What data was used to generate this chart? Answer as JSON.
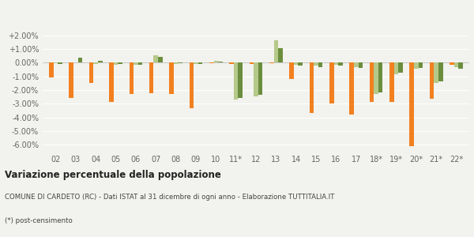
{
  "categories": [
    "02",
    "03",
    "04",
    "05",
    "06",
    "07",
    "08",
    "09",
    "10",
    "11*",
    "12",
    "13",
    "14",
    "15",
    "16",
    "17",
    "18*",
    "19*",
    "20*",
    "21*",
    "22*"
  ],
  "cardeto": [
    -1.05,
    -2.6,
    -1.5,
    -2.85,
    -2.3,
    -2.25,
    -2.3,
    -3.35,
    -0.05,
    -0.1,
    -0.1,
    -0.05,
    -1.2,
    -3.7,
    -3.0,
    -3.8,
    -2.85,
    -2.85,
    -6.1,
    -2.65,
    -0.15
  ],
  "provincia_rc": [
    -0.05,
    0.0,
    -0.1,
    -0.15,
    -0.15,
    0.55,
    -0.1,
    -0.1,
    0.15,
    -2.7,
    -2.45,
    1.65,
    -0.15,
    -0.2,
    -0.15,
    -0.3,
    -2.3,
    -0.85,
    -0.45,
    -1.5,
    -0.3
  ],
  "calabria": [
    -0.1,
    0.35,
    0.15,
    -0.1,
    -0.15,
    0.45,
    -0.05,
    -0.1,
    0.05,
    -2.6,
    -2.35,
    1.05,
    -0.2,
    -0.35,
    -0.2,
    -0.4,
    -2.2,
    -0.75,
    -0.4,
    -1.35,
    -0.45
  ],
  "cardeto_color": "#f28020",
  "provincia_color": "#b5c98a",
  "calabria_color": "#6b8e3e",
  "bg_color": "#f2f2ee",
  "grid_color": "#ffffff",
  "title": "Variazione percentuale della popolazione",
  "subtitle": "COMUNE DI CARDETO (RC) - Dati ISTAT al 31 dicembre di ogni anno - Elaborazione TUTTITALIA.IT",
  "footnote": "(*) post-censimento",
  "ylim": [
    -6.5,
    2.5
  ],
  "yticks": [
    -6.0,
    -5.0,
    -4.0,
    -3.0,
    -2.0,
    -1.0,
    0.0,
    1.0,
    2.0
  ],
  "bar_width": 0.22,
  "legend_fontsize": 8,
  "tick_fontsize": 7,
  "title_fontsize": 8.5,
  "subtitle_fontsize": 6.2
}
